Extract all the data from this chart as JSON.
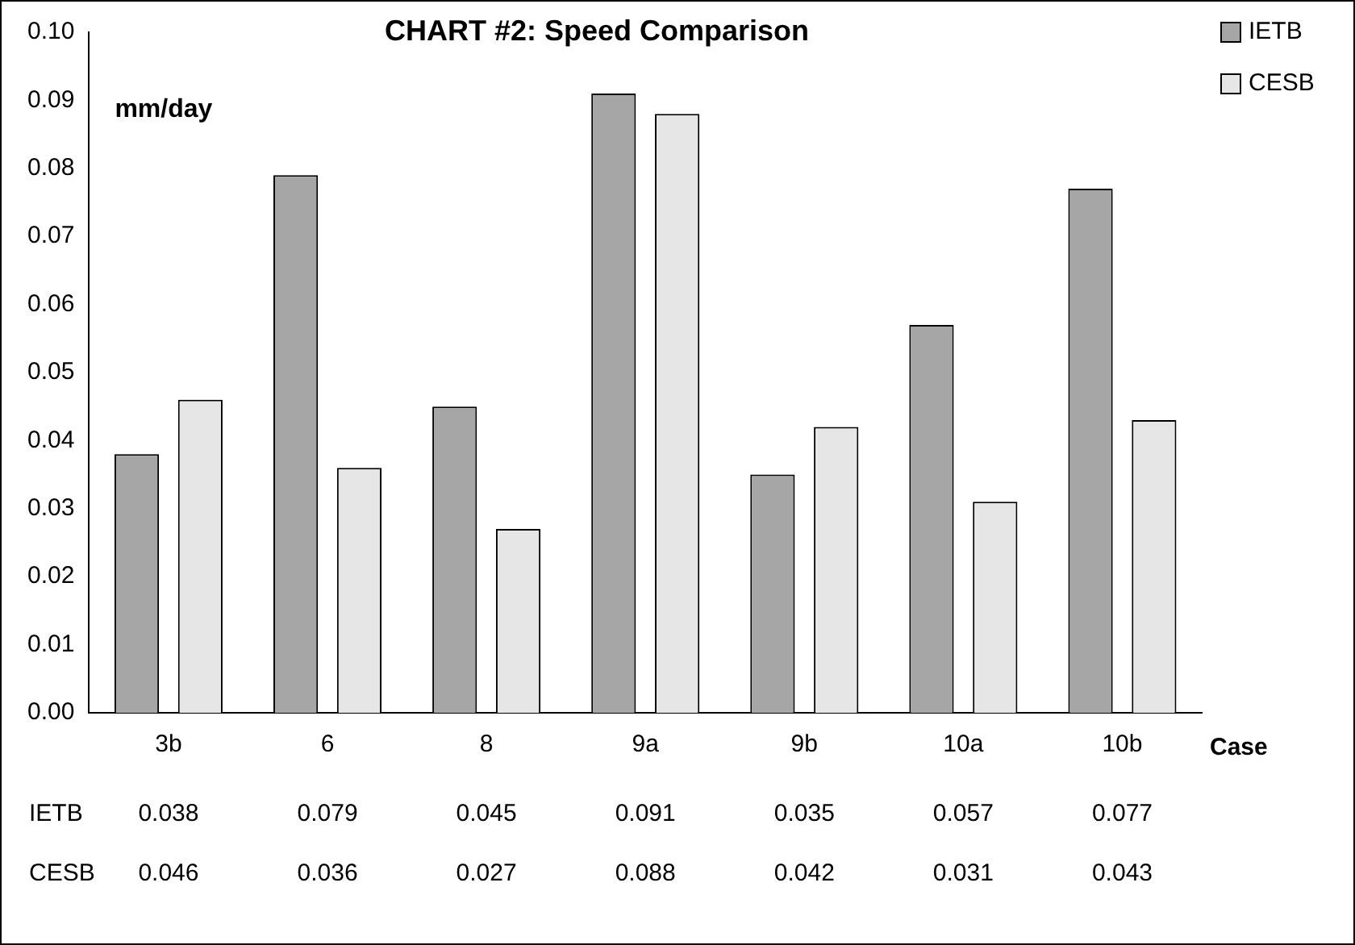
{
  "chart_data": {
    "type": "bar",
    "title": "CHART #2: Speed Comparison",
    "ylabel": "mm/day",
    "xlabel": "Case",
    "categories": [
      "3b",
      "6",
      "8",
      "9a",
      "9b",
      "10a",
      "10b"
    ],
    "series": [
      {
        "name": "IETB",
        "color": "#a6a6a6",
        "values": [
          0.038,
          0.079,
          0.045,
          0.091,
          0.035,
          0.057,
          0.077
        ]
      },
      {
        "name": "CESB",
        "color": "#e6e6e6",
        "values": [
          0.046,
          0.036,
          0.027,
          0.088,
          0.042,
          0.031,
          0.043
        ]
      }
    ],
    "ylim": [
      0,
      0.1
    ],
    "yticks": [
      {
        "value": 0,
        "label": "0.00"
      },
      {
        "value": 0.01,
        "label": "0.01"
      },
      {
        "value": 0.02,
        "label": "0.02"
      },
      {
        "value": 0.03,
        "label": "0.03"
      },
      {
        "value": 0.04,
        "label": "0.04"
      },
      {
        "value": 0.05,
        "label": "0.05"
      },
      {
        "value": 0.06,
        "label": "0.06"
      },
      {
        "value": 0.07,
        "label": "0.07"
      },
      {
        "value": 0.08,
        "label": "0.08"
      },
      {
        "value": 0.09,
        "label": "0.09"
      },
      {
        "value": 0.1,
        "label": "0.10"
      }
    ],
    "grid": false,
    "legend": "top right",
    "data_labels": true
  }
}
